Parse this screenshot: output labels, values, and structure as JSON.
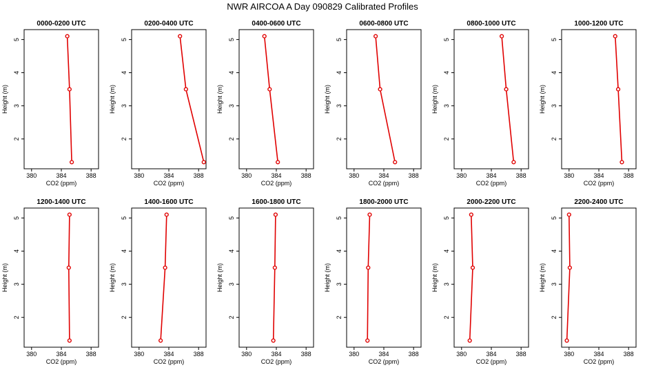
{
  "page_title": "NWR AIRCOA A  Day 090829  Calibrated Profiles",
  "chart_data": [
    {
      "type": "line",
      "title": "0000-0200 UTC",
      "xlabel": "CO2 (ppm)",
      "ylabel": "Height (m)",
      "xlim": [
        379,
        389
      ],
      "ylim": [
        1.1,
        5.3
      ],
      "xticks": [
        380,
        384,
        388
      ],
      "yticks": [
        2,
        3,
        4,
        5
      ],
      "series": [
        {
          "x": [
            385.4,
            385.1,
            384.8
          ],
          "y": [
            1.3,
            3.5,
            5.1
          ]
        }
      ],
      "color": "#e00000"
    },
    {
      "type": "line",
      "title": "0200-0400 UTC",
      "xlabel": "CO2 (ppm)",
      "ylabel": "Height (m)",
      "xlim": [
        379,
        389
      ],
      "ylim": [
        1.1,
        5.3
      ],
      "xticks": [
        380,
        384,
        388
      ],
      "yticks": [
        2,
        3,
        4,
        5
      ],
      "series": [
        {
          "x": [
            388.7,
            386.3,
            385.5
          ],
          "y": [
            1.3,
            3.5,
            5.1
          ]
        }
      ],
      "color": "#e00000"
    },
    {
      "type": "line",
      "title": "0400-0600 UTC",
      "xlabel": "CO2 (ppm)",
      "ylabel": "Height (m)",
      "xlim": [
        379,
        389
      ],
      "ylim": [
        1.1,
        5.3
      ],
      "xticks": [
        380,
        384,
        388
      ],
      "yticks": [
        2,
        3,
        4,
        5
      ],
      "series": [
        {
          "x": [
            384.2,
            383.1,
            382.4
          ],
          "y": [
            1.3,
            3.5,
            5.1
          ]
        }
      ],
      "color": "#e00000"
    },
    {
      "type": "line",
      "title": "0600-0800 UTC",
      "xlabel": "CO2 (ppm)",
      "ylabel": "Height (m)",
      "xlim": [
        379,
        389
      ],
      "ylim": [
        1.1,
        5.3
      ],
      "xticks": [
        380,
        384,
        388
      ],
      "yticks": [
        2,
        3,
        4,
        5
      ],
      "series": [
        {
          "x": [
            385.5,
            383.5,
            382.9
          ],
          "y": [
            1.3,
            3.5,
            5.1
          ]
        }
      ],
      "color": "#e00000"
    },
    {
      "type": "line",
      "title": "0800-1000 UTC",
      "xlabel": "CO2 (ppm)",
      "ylabel": "Height (m)",
      "xlim": [
        379,
        389
      ],
      "ylim": [
        1.1,
        5.3
      ],
      "xticks": [
        380,
        384,
        388
      ],
      "yticks": [
        2,
        3,
        4,
        5
      ],
      "series": [
        {
          "x": [
            387.0,
            386.0,
            385.4
          ],
          "y": [
            1.3,
            3.5,
            5.1
          ]
        }
      ],
      "color": "#e00000"
    },
    {
      "type": "line",
      "title": "1000-1200 UTC",
      "xlabel": "CO2 (ppm)",
      "ylabel": "Height (m)",
      "xlim": [
        379,
        389
      ],
      "ylim": [
        1.1,
        5.3
      ],
      "xticks": [
        380,
        384,
        388
      ],
      "yticks": [
        2,
        3,
        4,
        5
      ],
      "series": [
        {
          "x": [
            387.1,
            386.6,
            386.2
          ],
          "y": [
            1.3,
            3.5,
            5.1
          ]
        }
      ],
      "color": "#e00000"
    },
    {
      "type": "line",
      "title": "1200-1400 UTC",
      "xlabel": "CO2 (ppm)",
      "ylabel": "Height (m)",
      "xlim": [
        379,
        389
      ],
      "ylim": [
        1.1,
        5.3
      ],
      "xticks": [
        380,
        384,
        388
      ],
      "yticks": [
        2,
        3,
        4,
        5
      ],
      "series": [
        {
          "x": [
            385.1,
            385.0,
            385.1
          ],
          "y": [
            1.3,
            3.5,
            5.1
          ]
        }
      ],
      "color": "#e00000"
    },
    {
      "type": "line",
      "title": "1400-1600 UTC",
      "xlabel": "CO2 (ppm)",
      "ylabel": "Height (m)",
      "xlim": [
        379,
        389
      ],
      "ylim": [
        1.1,
        5.3
      ],
      "xticks": [
        380,
        384,
        388
      ],
      "yticks": [
        2,
        3,
        4,
        5
      ],
      "series": [
        {
          "x": [
            382.9,
            383.5,
            383.7
          ],
          "y": [
            1.3,
            3.5,
            5.1
          ]
        }
      ],
      "color": "#e00000"
    },
    {
      "type": "line",
      "title": "1600-1800 UTC",
      "xlabel": "CO2 (ppm)",
      "ylabel": "Height (m)",
      "xlim": [
        379,
        389
      ],
      "ylim": [
        1.1,
        5.3
      ],
      "xticks": [
        380,
        384,
        388
      ],
      "yticks": [
        2,
        3,
        4,
        5
      ],
      "series": [
        {
          "x": [
            383.6,
            383.8,
            383.9
          ],
          "y": [
            1.3,
            3.5,
            5.1
          ]
        }
      ],
      "color": "#e00000"
    },
    {
      "type": "line",
      "title": "1800-2000 UTC",
      "xlabel": "CO2 (ppm)",
      "ylabel": "Height (m)",
      "xlim": [
        379,
        389
      ],
      "ylim": [
        1.1,
        5.3
      ],
      "xticks": [
        380,
        384,
        388
      ],
      "yticks": [
        2,
        3,
        4,
        5
      ],
      "series": [
        {
          "x": [
            381.8,
            381.9,
            382.1
          ],
          "y": [
            1.3,
            3.5,
            5.1
          ]
        }
      ],
      "color": "#e00000"
    },
    {
      "type": "line",
      "title": "2000-2200 UTC",
      "xlabel": "CO2 (ppm)",
      "ylabel": "Height (m)",
      "xlim": [
        379,
        389
      ],
      "ylim": [
        1.1,
        5.3
      ],
      "xticks": [
        380,
        384,
        388
      ],
      "yticks": [
        2,
        3,
        4,
        5
      ],
      "series": [
        {
          "x": [
            381.1,
            381.5,
            381.3
          ],
          "y": [
            1.3,
            3.5,
            5.1
          ]
        }
      ],
      "color": "#e00000"
    },
    {
      "type": "line",
      "title": "2200-2400 UTC",
      "xlabel": "CO2 (ppm)",
      "ylabel": "Height (m)",
      "xlim": [
        379,
        389
      ],
      "ylim": [
        1.1,
        5.3
      ],
      "xticks": [
        380,
        384,
        388
      ],
      "yticks": [
        2,
        3,
        4,
        5
      ],
      "series": [
        {
          "x": [
            379.7,
            380.1,
            380.0
          ],
          "y": [
            1.3,
            3.5,
            5.1
          ]
        }
      ],
      "color": "#e00000"
    }
  ]
}
